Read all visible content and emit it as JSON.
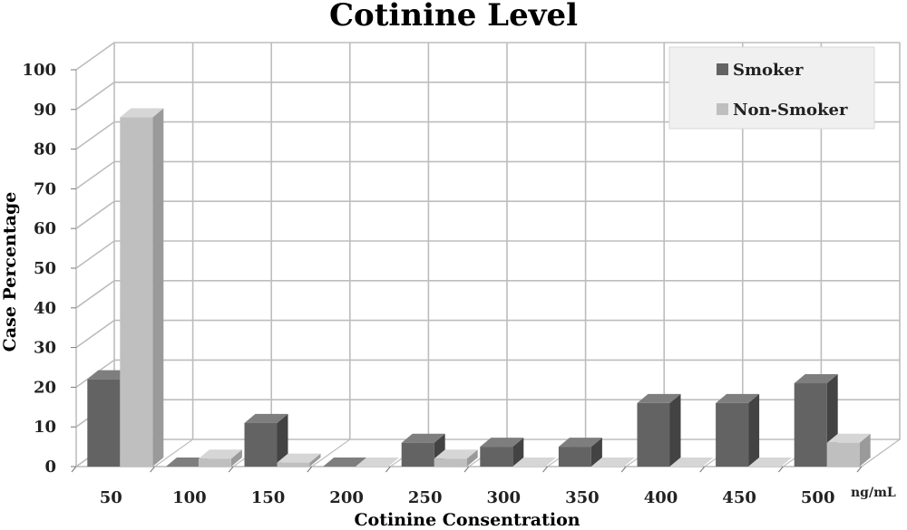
{
  "chart_data": {
    "type": "bar",
    "title": "Cotinine Level",
    "xlabel": "Cotinine Consentration",
    "ylabel": "Case Percentage",
    "x_unit": "ng/mL",
    "categories": [
      "50",
      "100",
      "150",
      "200",
      "250",
      "300",
      "350",
      "400",
      "450",
      "500"
    ],
    "series": [
      {
        "name": "Smoker",
        "values": [
          22,
          0,
          11,
          0,
          6,
          5,
          5,
          16,
          16,
          21
        ]
      },
      {
        "name": "Non-Smoker",
        "values": [
          88,
          2,
          1,
          0,
          2,
          0,
          0,
          0,
          0,
          6
        ]
      }
    ],
    "ylim": [
      0,
      100
    ],
    "yticks": [
      0,
      10,
      20,
      30,
      40,
      50,
      60,
      70,
      80,
      90,
      100
    ],
    "grid": true,
    "legend_position": "top-right",
    "style": "3d",
    "colors": {
      "Smoker": {
        "front": "#636363",
        "side": "#434343",
        "top": "#7e7e7e"
      },
      "Non-Smoker": {
        "front": "#bfbfbf",
        "side": "#9a9a9a",
        "top": "#d6d6d6"
      },
      "grid": "#bdbdbd",
      "legend_bg": "#f0f0f0"
    }
  }
}
